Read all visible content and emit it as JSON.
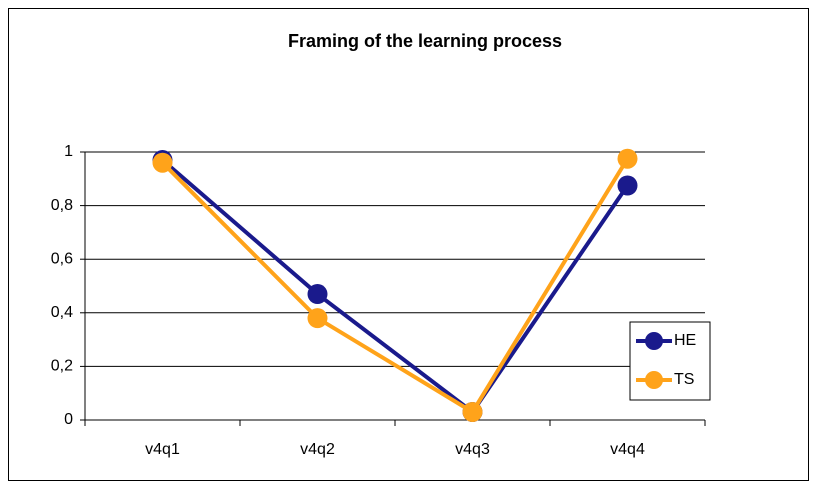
{
  "chart_data": {
    "type": "line",
    "title": "Framing of the learning process",
    "categories": [
      "v4q1",
      "v4q2",
      "v4q3",
      "v4q4"
    ],
    "series": [
      {
        "name": "HE",
        "color": "#1a1a8c",
        "values": [
          0.97,
          0.47,
          0.03,
          0.875
        ]
      },
      {
        "name": "TS",
        "color": "#ffa31a",
        "values": [
          0.96,
          0.38,
          0.03,
          0.975
        ]
      }
    ],
    "ylim": [
      0,
      1
    ],
    "yticks": [
      0,
      {
        "value": 0.2,
        "label": "0,2"
      },
      {
        "value": 0.4,
        "label": "0,4"
      },
      {
        "value": 0.6,
        "label": "0,6"
      },
      {
        "value": 0.8,
        "label": "0,8"
      },
      1
    ],
    "grid": true,
    "legend": "right"
  }
}
